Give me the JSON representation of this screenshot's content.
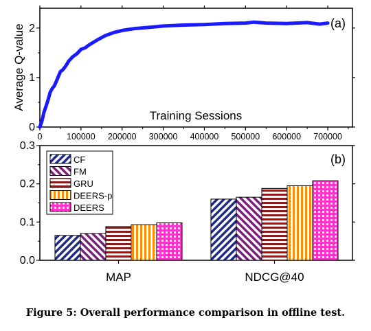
{
  "chart_data": [
    {
      "type": "line",
      "panel_label": "(a)",
      "xlabel": "Training Sessions",
      "ylabel": "Average Q-value",
      "xlim": [
        0,
        760000
      ],
      "ylim": [
        0,
        2.4
      ],
      "x_ticks": [
        0,
        100000,
        200000,
        300000,
        400000,
        500000,
        600000,
        700000
      ],
      "x_tick_labels": [
        "0",
        "100000",
        "200000",
        "300000",
        "400000",
        "500000",
        "600000",
        "700000"
      ],
      "y_ticks": [
        0,
        1,
        2
      ],
      "y_tick_labels": [
        "0",
        "1",
        "2"
      ],
      "color": "#1a1aff",
      "x": [
        0,
        5000,
        10000,
        15000,
        20000,
        25000,
        30000,
        35000,
        40000,
        45000,
        50000,
        55000,
        60000,
        65000,
        70000,
        80000,
        90000,
        100000,
        110000,
        120000,
        140000,
        160000,
        180000,
        200000,
        230000,
        260000,
        300000,
        350000,
        400000,
        450000,
        500000,
        520000,
        550000,
        600000,
        650000,
        680000,
        700000
      ],
      "y": [
        0.0,
        0.12,
        0.3,
        0.42,
        0.55,
        0.7,
        0.78,
        0.83,
        0.92,
        1.02,
        1.12,
        1.15,
        1.2,
        1.26,
        1.33,
        1.42,
        1.48,
        1.57,
        1.6,
        1.66,
        1.76,
        1.85,
        1.91,
        1.95,
        1.99,
        2.01,
        2.04,
        2.06,
        2.07,
        2.09,
        2.1,
        2.12,
        2.1,
        2.09,
        2.11,
        2.08,
        2.1
      ]
    },
    {
      "type": "bar",
      "panel_label": "(b)",
      "categories": [
        "MAP",
        "NDCG@40"
      ],
      "ylim": [
        0,
        0.3
      ],
      "y_ticks": [
        0,
        0.1,
        0.2,
        0.3
      ],
      "y_tick_labels": [
        "0.0",
        "0.1",
        "0.2",
        "0.3"
      ],
      "legend_position": "top-left",
      "series": [
        {
          "name": "CF",
          "pattern": "diagonal-blue",
          "color": "#1e2a8c",
          "values": [
            0.065,
            0.16
          ]
        },
        {
          "name": "FM",
          "pattern": "diagonal-purple",
          "color": "#7a1f7a",
          "values": [
            0.07,
            0.165
          ]
        },
        {
          "name": "GRU",
          "pattern": "horizontal-maroon",
          "color": "#8b1a1a",
          "values": [
            0.088,
            0.188
          ]
        },
        {
          "name": "DEERS-p",
          "pattern": "vertical-orange",
          "color": "#ff8c00",
          "values": [
            0.093,
            0.195
          ]
        },
        {
          "name": "DEERS",
          "pattern": "grid-magenta",
          "color": "#ff33cc",
          "values": [
            0.098,
            0.208
          ]
        }
      ]
    }
  ],
  "caption": "Figure 5: Overall performance comparison in offline test."
}
